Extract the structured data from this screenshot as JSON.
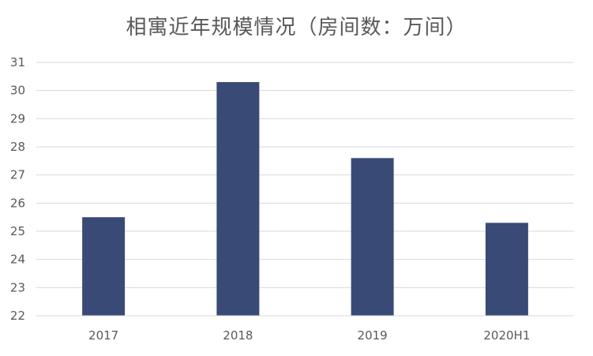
{
  "chart_data": {
    "type": "bar",
    "title": "相寓近年规模情况（房间数：万间）",
    "categories": [
      "2017",
      "2018",
      "2019",
      "2020H1"
    ],
    "series": [
      {
        "values": [
          25.5,
          30.3,
          27.6,
          25.3
        ]
      }
    ],
    "ylim": [
      22,
      31
    ],
    "yticks": [
      22,
      23,
      24,
      25,
      26,
      27,
      28,
      29,
      30,
      31
    ],
    "grid": true,
    "legend": "none",
    "colors": {
      "bar": "#3a4a76",
      "grid": "#d9d9d9",
      "text": "#595959"
    }
  }
}
